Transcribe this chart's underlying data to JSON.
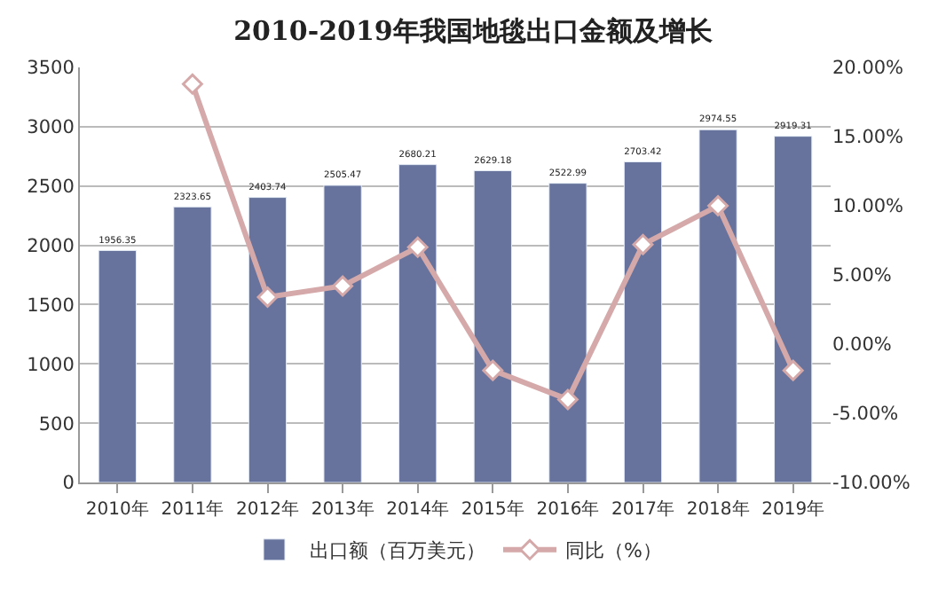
{
  "chart_data": {
    "type": "bar",
    "title": "2010-2019年我国地毯出口金额及增长",
    "categories": [
      "2010年",
      "2011年",
      "2012年",
      "2013年",
      "2014年",
      "2015年",
      "2016年",
      "2017年",
      "2018年",
      "2019年"
    ],
    "series": [
      {
        "name": "出口额（百万美元）",
        "color": "#67739c",
        "values": [
          1956.35,
          2323.65,
          2403.74,
          2505.47,
          2680.21,
          2629.18,
          2522.99,
          2703.42,
          2974.55,
          2919.31
        ],
        "value_labels": [
          "1956.35",
          "2323.65",
          "2403.74",
          "2505.47",
          "2680.21",
          "2629.18",
          "2522.99",
          "2703.42",
          "2974.55",
          "2919.31"
        ]
      },
      {
        "name": "同比（%）",
        "type": "line",
        "axis": "y2",
        "color": "#d5a9a9",
        "marker": "diamond",
        "values": [
          null,
          18.8,
          3.4,
          4.2,
          7.0,
          -1.9,
          -4.0,
          7.2,
          10.0,
          -1.9
        ]
      }
    ],
    "ylim": [
      0,
      3500
    ],
    "yticks": [
      0,
      500,
      1000,
      1500,
      2000,
      2500,
      3000,
      3500
    ],
    "y2lim": [
      -10,
      20
    ],
    "y2ticks": [
      {
        "value": -10,
        "label": "-10.00%"
      },
      {
        "value": -5,
        "label": "-5.00%"
      },
      {
        "value": 0,
        "label": "0.00%"
      },
      {
        "value": 5,
        "label": "5.00%"
      },
      {
        "value": 10,
        "label": "10.00%"
      },
      {
        "value": 15,
        "label": "15.00%"
      },
      {
        "value": 20,
        "label": "20.00%"
      }
    ],
    "grid": "y",
    "legend": "bottom"
  }
}
